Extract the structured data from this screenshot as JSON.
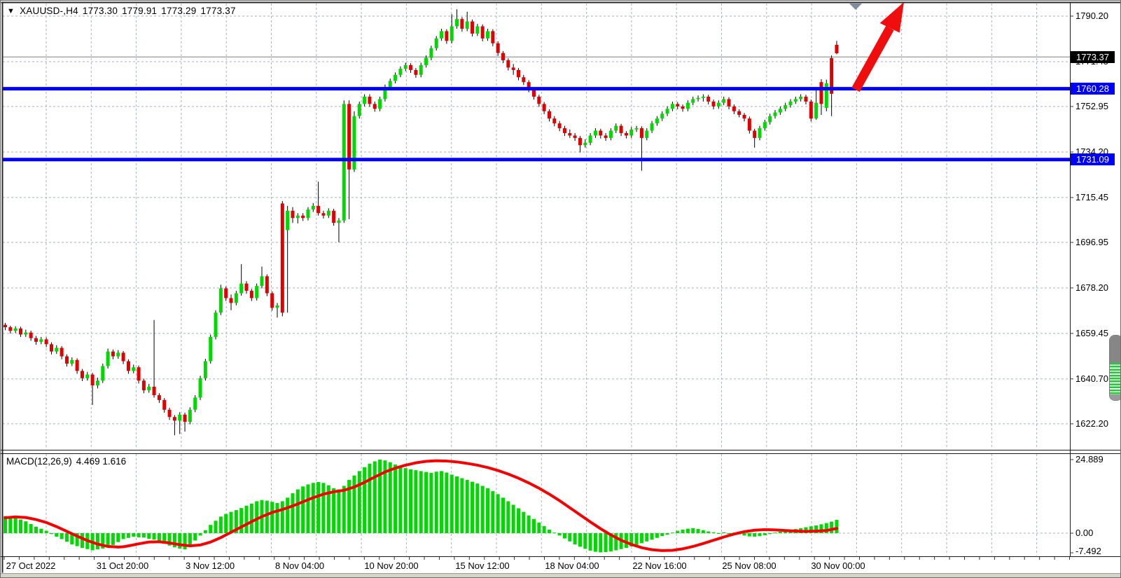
{
  "header": {
    "dropdown_icon": "▼",
    "symbol_timeframe": "XAUUSD-,H4",
    "open": "1773.30",
    "high": "1779.91",
    "low": "1773.29",
    "close": "1773.37"
  },
  "indicator_header": {
    "label": "MACD(12,26,9)",
    "values": "4.469 1.616"
  },
  "price_axis": {
    "labels": [
      "1790.20",
      "1771.45",
      "1752.95",
      "1734.20",
      "1715.45",
      "1696.95",
      "1678.20",
      "1659.45",
      "1640.70",
      "1622.20"
    ]
  },
  "macd_axis": {
    "labels": [
      "24.889",
      "0.00",
      "-7.492"
    ]
  },
  "time_axis": {
    "labels": [
      "27 Oct 2022",
      "31 Oct 20:00",
      "3 Nov 12:00",
      "8 Nov 04:00",
      "10 Nov 20:00",
      "15 Nov 12:00",
      "18 Nov 04:00",
      "22 Nov 16:00",
      "25 Nov 08:00",
      "30 Nov 00:00"
    ]
  },
  "overlays": {
    "current_price_tag": "1773.37",
    "hline_tags": [
      "1760.28",
      "1731.09"
    ]
  },
  "colors": {
    "bull": "#00d900",
    "bear": "#e00000",
    "wick": "#000000",
    "grid": "#a8b2bc",
    "hline": "#0000fe",
    "current_line": "#808080",
    "signal": "#f40000",
    "histogram": "#00d900",
    "arrow": "#ef0d0d",
    "marker": "#7d8c9b",
    "border": "#1a1a1a",
    "tag_current_bg": "#000000",
    "tag_hline_bg": "#0000fe"
  },
  "chart_data": {
    "type": "candlestick",
    "title": "XAUUSD-,H4",
    "symbol": "XAUUSD-",
    "timeframe": "H4",
    "current_ohlc": {
      "open": 1773.3,
      "high": 1779.91,
      "low": 1773.29,
      "close": 1773.37
    },
    "current_price": 1773.37,
    "price_ylim": [
      1611.5,
      1796.0
    ],
    "price_ticks": [
      1790.2,
      1771.45,
      1752.95,
      1734.2,
      1715.45,
      1696.95,
      1678.2,
      1659.45,
      1640.7,
      1622.2
    ],
    "horizontal_lines": [
      1760.28,
      1731.09
    ],
    "grid": "dashed",
    "x_labels": [
      "27 Oct 2022",
      "31 Oct 20:00",
      "3 Nov 12:00",
      "8 Nov 04:00",
      "10 Nov 20:00",
      "15 Nov 12:00",
      "18 Nov 04:00",
      "22 Nov 16:00",
      "25 Nov 08:00",
      "30 Nov 00:00"
    ],
    "annotations": [
      {
        "type": "arrow",
        "direction": "up",
        "color": "#ef0d0d",
        "from_price": 1760.3,
        "to_price": 1796.0
      },
      {
        "type": "time-marker",
        "shape": "triangle-down",
        "color": "#7d8c9b"
      }
    ],
    "candles": [
      [
        1663,
        1663.8,
        1660.8,
        1662
      ],
      [
        1662,
        1662.6,
        1659.4,
        1660.5
      ],
      [
        1660.5,
        1662.4,
        1659.6,
        1661.5
      ],
      [
        1661.5,
        1662.2,
        1658,
        1659
      ],
      [
        1659,
        1661,
        1658,
        1659.8
      ],
      [
        1659.8,
        1660.6,
        1656.4,
        1657.5
      ],
      [
        1657.5,
        1658.4,
        1654.8,
        1656
      ],
      [
        1656,
        1658,
        1655,
        1657
      ],
      [
        1657,
        1657.8,
        1653.8,
        1655
      ],
      [
        1655,
        1655.8,
        1650.8,
        1652
      ],
      [
        1652,
        1654.6,
        1651,
        1653.5
      ],
      [
        1653.5,
        1654.2,
        1648.8,
        1650
      ],
      [
        1650,
        1650.8,
        1645.8,
        1647
      ],
      [
        1647,
        1649.6,
        1646,
        1648.5
      ],
      [
        1648.5,
        1649.2,
        1642.8,
        1644
      ],
      [
        1644,
        1644.8,
        1639.8,
        1641
      ],
      [
        1641,
        1643.6,
        1640,
        1642.5
      ],
      [
        1642.5,
        1643.2,
        1630,
        1638
      ],
      [
        1638,
        1641.2,
        1636.8,
        1640
      ],
      [
        1640,
        1647,
        1639,
        1646
      ],
      [
        1646,
        1653.2,
        1645,
        1652
      ],
      [
        1652,
        1652.8,
        1648.8,
        1650
      ],
      [
        1650,
        1652.6,
        1649,
        1651.5
      ],
      [
        1651.5,
        1652.2,
        1646.8,
        1648
      ],
      [
        1648,
        1648.8,
        1642.8,
        1644
      ],
      [
        1644,
        1646.6,
        1643,
        1645.5
      ],
      [
        1645.5,
        1646.2,
        1638.8,
        1640
      ],
      [
        1640,
        1640.8,
        1634.8,
        1636
      ],
      [
        1636,
        1638.6,
        1635,
        1637.5
      ],
      [
        1637.5,
        1665,
        1633,
        1634
      ],
      [
        1634,
        1634.8,
        1630.8,
        1632
      ],
      [
        1632,
        1632.8,
        1626.8,
        1628
      ],
      [
        1628,
        1628.8,
        1623.8,
        1625
      ],
      [
        1625,
        1625.8,
        1617.5,
        1623.5
      ],
      [
        1623.5,
        1627,
        1618,
        1626
      ],
      [
        1626,
        1626.8,
        1619,
        1623
      ],
      [
        1623,
        1629,
        1622,
        1628
      ],
      [
        1628,
        1634,
        1627,
        1633
      ],
      [
        1633,
        1642,
        1632,
        1641
      ],
      [
        1641,
        1649,
        1640,
        1648
      ],
      [
        1648,
        1659,
        1647,
        1658
      ],
      [
        1658,
        1669,
        1657,
        1668
      ],
      [
        1668,
        1679.5,
        1667,
        1678
      ],
      [
        1678,
        1678.8,
        1672.8,
        1674
      ],
      [
        1674,
        1675.5,
        1669,
        1672
      ],
      [
        1672,
        1677,
        1671,
        1676
      ],
      [
        1676,
        1688,
        1675,
        1680
      ],
      [
        1680,
        1681,
        1675.8,
        1677
      ],
      [
        1677,
        1677.8,
        1672.8,
        1674
      ],
      [
        1674,
        1680,
        1673,
        1679
      ],
      [
        1679,
        1687,
        1678,
        1683
      ],
      [
        1683,
        1683.8,
        1674.8,
        1676
      ],
      [
        1676,
        1676.8,
        1668.8,
        1670
      ],
      [
        1670,
        1672,
        1666,
        1671
      ],
      [
        1713,
        1714,
        1666.5,
        1668
      ],
      [
        1702,
        1712,
        1668,
        1710
      ],
      [
        1710,
        1711.5,
        1705,
        1707
      ],
      [
        1707,
        1709,
        1704.8,
        1708
      ],
      [
        1708,
        1709,
        1705.8,
        1707
      ],
      [
        1707,
        1711.5,
        1706,
        1710.5
      ],
      [
        1710.5,
        1713.2,
        1709.5,
        1712
      ],
      [
        1712,
        1722,
        1708,
        1709
      ],
      [
        1709,
        1710,
        1706.8,
        1708
      ],
      [
        1708,
        1711,
        1707,
        1710
      ],
      [
        1710,
        1710.8,
        1703.8,
        1705
      ],
      [
        1705,
        1707,
        1697,
        1706
      ],
      [
        1706,
        1755.5,
        1705,
        1754
      ],
      [
        1754,
        1755.5,
        1706.5,
        1727
      ],
      [
        1727,
        1751,
        1726,
        1749
      ],
      [
        1749,
        1755,
        1748,
        1754
      ],
      [
        1754,
        1758,
        1753,
        1757
      ],
      [
        1757,
        1758,
        1752.8,
        1754
      ],
      [
        1754,
        1755,
        1750.8,
        1752
      ],
      [
        1752,
        1757,
        1751,
        1756
      ],
      [
        1756,
        1762,
        1755,
        1761
      ],
      [
        1761,
        1764.5,
        1760,
        1763.5
      ],
      [
        1763.5,
        1767,
        1762.5,
        1766
      ],
      [
        1766,
        1769.5,
        1765,
        1768.5
      ],
      [
        1768.5,
        1771,
        1767.5,
        1770
      ],
      [
        1770,
        1770.8,
        1766.8,
        1768
      ],
      [
        1768,
        1768.8,
        1764.8,
        1766
      ],
      [
        1766,
        1771,
        1765,
        1770
      ],
      [
        1770,
        1774,
        1769,
        1773
      ],
      [
        1773,
        1778,
        1772,
        1777
      ],
      [
        1777,
        1782,
        1776,
        1781
      ],
      [
        1781,
        1785,
        1780,
        1784
      ],
      [
        1784,
        1784.8,
        1778.8,
        1780
      ],
      [
        1780,
        1791,
        1779,
        1786
      ],
      [
        1786,
        1793,
        1785,
        1789
      ],
      [
        1789,
        1789.8,
        1783.8,
        1785
      ],
      [
        1785,
        1792,
        1784,
        1788
      ],
      [
        1788,
        1788.8,
        1781.8,
        1783
      ],
      [
        1783,
        1787,
        1782,
        1786
      ],
      [
        1786,
        1786.8,
        1779.8,
        1781
      ],
      [
        1781,
        1785,
        1780,
        1784
      ],
      [
        1784,
        1784.8,
        1777.8,
        1779
      ],
      [
        1779,
        1779.8,
        1773.8,
        1775
      ],
      [
        1775,
        1775.8,
        1770.8,
        1772
      ],
      [
        1772,
        1772.8,
        1767.8,
        1769
      ],
      [
        1769,
        1770.5,
        1766,
        1768
      ],
      [
        1768,
        1768.8,
        1763.8,
        1765
      ],
      [
        1765,
        1766,
        1761.8,
        1763
      ],
      [
        1763,
        1763.8,
        1758.8,
        1760
      ],
      [
        1760,
        1760.8,
        1755.8,
        1757
      ],
      [
        1757,
        1757.8,
        1752.8,
        1754
      ],
      [
        1754,
        1754.8,
        1749.8,
        1751
      ],
      [
        1751,
        1751.8,
        1746.8,
        1748
      ],
      [
        1748,
        1749,
        1744.8,
        1746
      ],
      [
        1746,
        1747,
        1742.8,
        1744
      ],
      [
        1744,
        1745,
        1740.8,
        1742
      ],
      [
        1742,
        1743.5,
        1740,
        1741
      ],
      [
        1741,
        1742,
        1738.8,
        1740
      ],
      [
        1740,
        1740.8,
        1734,
        1737
      ],
      [
        1737,
        1739.5,
        1736,
        1738
      ],
      [
        1738,
        1742,
        1737,
        1741
      ],
      [
        1741,
        1744,
        1740,
        1743
      ],
      [
        1743,
        1743.8,
        1739.8,
        1741
      ],
      [
        1741,
        1742,
        1738.8,
        1740
      ],
      [
        1740,
        1744,
        1739,
        1743
      ],
      [
        1743,
        1746,
        1742,
        1745
      ],
      [
        1745,
        1745.8,
        1740.8,
        1742
      ],
      [
        1742,
        1742.8,
        1739.8,
        1741
      ],
      [
        1741,
        1744.5,
        1740,
        1743.5
      ],
      [
        1743.5,
        1745,
        1742.5,
        1744
      ],
      [
        1744,
        1744.8,
        1726.5,
        1740
      ],
      [
        1740,
        1744,
        1739,
        1743
      ],
      [
        1743,
        1747,
        1742,
        1746
      ],
      [
        1746,
        1749,
        1745,
        1748
      ],
      [
        1748,
        1751,
        1747,
        1750
      ],
      [
        1750,
        1753,
        1749,
        1752
      ],
      [
        1752,
        1755,
        1751,
        1754
      ],
      [
        1754,
        1754.8,
        1751.8,
        1753
      ],
      [
        1753,
        1753.8,
        1750.8,
        1752
      ],
      [
        1752,
        1755.5,
        1751,
        1754.5
      ],
      [
        1754.5,
        1757,
        1753.5,
        1756
      ],
      [
        1756,
        1757.5,
        1755,
        1756.5
      ],
      [
        1756.5,
        1758,
        1755,
        1757
      ],
      [
        1757,
        1757.8,
        1753.8,
        1755
      ],
      [
        1755,
        1755.8,
        1751.8,
        1753
      ],
      [
        1753,
        1755.5,
        1752,
        1754.5
      ],
      [
        1754.5,
        1757,
        1753.5,
        1756
      ],
      [
        1756,
        1756.8,
        1751.8,
        1753
      ],
      [
        1753,
        1753.8,
        1749.8,
        1751
      ],
      [
        1751,
        1751.8,
        1748.5,
        1749.5
      ],
      [
        1749.5,
        1750.3,
        1746.8,
        1748
      ],
      [
        1748,
        1748.8,
        1741.8,
        1743
      ],
      [
        1743,
        1743.8,
        1736,
        1740
      ],
      [
        1740,
        1745,
        1739,
        1744
      ],
      [
        1744,
        1747.5,
        1743,
        1746.5
      ],
      [
        1746.5,
        1750,
        1745.5,
        1749
      ],
      [
        1749,
        1751.5,
        1748,
        1750.5
      ],
      [
        1750.5,
        1753,
        1749.5,
        1752
      ],
      [
        1752,
        1754.5,
        1751,
        1753.5
      ],
      [
        1753.5,
        1756,
        1752.5,
        1755
      ],
      [
        1755,
        1757,
        1754,
        1756
      ],
      [
        1756,
        1758,
        1755,
        1757
      ],
      [
        1757,
        1757.8,
        1753.8,
        1755
      ],
      [
        1755,
        1755.8,
        1746.8,
        1748
      ],
      [
        1748,
        1760,
        1747.5,
        1754.5
      ],
      [
        1763,
        1764.2,
        1749.5,
        1754
      ],
      [
        1752.4,
        1764,
        1751,
        1762.5
      ],
      [
        1772.9,
        1774,
        1749,
        1758.2
      ],
      [
        1778.4,
        1780,
        1774.5,
        1774.9
      ]
    ],
    "indicator": {
      "name": "MACD",
      "params": [
        12,
        26,
        9
      ],
      "current_values": {
        "macd": 4.469,
        "signal": 1.616
      },
      "ylim": [
        -7.8,
        27.0
      ],
      "axis_labels": [
        24.889,
        0.0,
        -7.492
      ],
      "histogram": [
        5.8,
        5.5,
        5.2,
        4.6,
        4.0,
        3.1,
        2.2,
        1.5,
        0.8,
        -0.3,
        -1.2,
        -2.0,
        -2.9,
        -3.8,
        -4.4,
        -5.0,
        -5.4,
        -5.8,
        -5.5,
        -5.2,
        -4.6,
        -4.0,
        -3.0,
        -2.0,
        -1.6,
        -1.2,
        -1.4,
        -1.5,
        -1.9,
        -2.2,
        -2.9,
        -3.5,
        -4.2,
        -4.8,
        -5.2,
        -5.5,
        -4.5,
        -2.5,
        -0.8,
        1.0,
        2.8,
        4.2,
        5.6,
        6.5,
        7.2,
        7.8,
        8.5,
        9.3,
        10.0,
        10.8,
        11.2,
        11.0,
        10.6,
        10.2,
        10.8,
        12.0,
        13.5,
        14.8,
        15.8,
        16.5,
        17.0,
        17.3,
        17.0,
        16.2,
        15.2,
        14.8,
        16.0,
        18.0,
        19.5,
        21.0,
        22.3,
        23.5,
        24.3,
        24.9,
        24.6,
        24.0,
        23.2,
        22.5,
        22.0,
        21.6,
        21.3,
        21.0,
        20.7,
        20.4,
        20.8,
        21.0,
        20.5,
        19.8,
        19.2,
        18.6,
        18.0,
        17.4,
        16.8,
        16.0,
        15.2,
        14.2,
        13.2,
        12.0,
        10.8,
        9.6,
        8.4,
        7.2,
        6.0,
        4.8,
        3.6,
        2.4,
        1.2,
        0.2,
        -0.8,
        -1.8,
        -2.8,
        -3.8,
        -4.6,
        -5.3,
        -5.9,
        -6.3,
        -6.5,
        -6.4,
        -6.2,
        -5.8,
        -5.4,
        -5.0,
        -4.5,
        -4.0,
        -3.4,
        -2.8,
        -2.2,
        -1.6,
        -1.0,
        -0.5,
        0.2,
        0.8,
        1.2,
        1.5,
        1.7,
        1.4,
        1.0,
        0.6,
        0.3,
        -0.2,
        0.3,
        -0.3,
        0.2,
        -0.4,
        -0.8,
        -1.1,
        -1.2,
        -1.0,
        -0.7,
        -0.3,
        0.2,
        0.5,
        0.8,
        1.1,
        1.4,
        1.7,
        2.0,
        2.3,
        2.6,
        3.0,
        3.4,
        3.9,
        4.5
      ],
      "signal_line": [
        5.2,
        5.35,
        5.5,
        5.4,
        5.3,
        4.95,
        4.6,
        4.1,
        3.6,
        2.9,
        2.2,
        1.4,
        0.6,
        -0.2,
        -1.0,
        -1.75,
        -2.5,
        -3.1,
        -3.7,
        -4.1,
        -4.5,
        -4.6,
        -4.7,
        -4.6,
        -4.3,
        -3.95,
        -3.6,
        -3.3,
        -3.0,
        -2.95,
        -2.9,
        -3.1,
        -3.3,
        -3.6,
        -3.9,
        -4.1,
        -4.3,
        -4.15,
        -4.0,
        -3.5,
        -3.0,
        -2.25,
        -1.5,
        -0.6,
        0.3,
        1.2,
        2.1,
        3.0,
        3.9,
        4.75,
        5.6,
        6.3,
        7.0,
        7.5,
        8.0,
        8.6,
        9.2,
        9.9,
        10.6,
        11.3,
        12.0,
        12.6,
        13.2,
        13.6,
        14.0,
        14.25,
        14.5,
        15.05,
        15.6,
        16.4,
        17.2,
        18.1,
        19.0,
        19.85,
        20.7,
        21.35,
        22.0,
        22.5,
        23.0,
        23.4,
        23.8,
        24.05,
        24.3,
        24.4,
        24.5,
        24.45,
        24.4,
        24.25,
        24.1,
        23.85,
        23.6,
        23.3,
        23.0,
        22.6,
        22.2,
        21.7,
        21.2,
        20.6,
        20.0,
        19.3,
        18.6,
        17.8,
        17.0,
        16.1,
        15.2,
        14.2,
        13.2,
        12.1,
        11.0,
        9.8,
        8.6,
        7.4,
        6.2,
        5.0,
        3.8,
        2.65,
        1.5,
        0.45,
        -0.6,
        -1.5,
        -2.4,
        -3.1,
        -3.8,
        -4.35,
        -4.9,
        -5.25,
        -5.6,
        -5.75,
        -5.9,
        -5.85,
        -5.8,
        -5.55,
        -5.3,
        -4.9,
        -4.5,
        -4.0,
        -3.5,
        -2.95,
        -2.4,
        -1.85,
        -1.3,
        -0.8,
        -0.3,
        0.1,
        0.5,
        0.75,
        1.0,
        1.1,
        1.2,
        1.15,
        1.1,
        1.0,
        0.9,
        0.8,
        0.7,
        0.65,
        0.6,
        0.65,
        0.7,
        0.8,
        0.9,
        1.25,
        1.6
      ]
    }
  }
}
